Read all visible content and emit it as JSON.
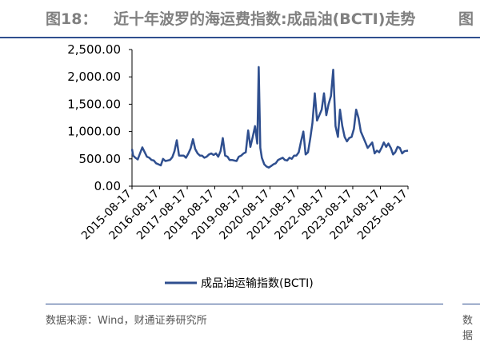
{
  "header": {
    "figure_number": "图18：",
    "figure_title": "近十年波罗的海运费指数:成品油(BCTI)走势",
    "next_figure_fragment": "图"
  },
  "footer": {
    "source": "数据来源：Wind，财通证券研究所",
    "next_source_fragment": "数据"
  },
  "colors": {
    "series": "#2f4f8f",
    "axis": "#000000",
    "title_text": "#808080"
  },
  "chart_data": {
    "type": "line",
    "title": "",
    "xlabel": "",
    "ylabel": "",
    "ylim": [
      0,
      2500
    ],
    "yticks": [
      0,
      500,
      1000,
      1500,
      2000,
      2500
    ],
    "ytick_labels": [
      "0.00",
      "500.00",
      "1,000.00",
      "1,500.00",
      "2,000.00",
      "2,500.00"
    ],
    "xlim": [
      "2015-08-17",
      "2025-08-17"
    ],
    "xtick_labels": [
      "2015-08-17",
      "2016-08-17",
      "2017-08-17",
      "2018-08-17",
      "2019-08-17",
      "2020-08-17",
      "2021-08-17",
      "2022-08-17",
      "2023-08-17",
      "2024-08-17",
      "2025-08-17"
    ],
    "grid": false,
    "legend_position": "bottom",
    "series": [
      {
        "name": "成品油运输指数(BCTI)",
        "x": [
          "2015-08-17",
          "2015-09-01",
          "2015-10-01",
          "2015-11-01",
          "2015-12-01",
          "2016-01-01",
          "2016-02-01",
          "2016-03-01",
          "2016-04-01",
          "2016-05-01",
          "2016-06-01",
          "2016-07-01",
          "2016-08-01",
          "2016-09-01",
          "2016-10-01",
          "2016-11-01",
          "2016-12-01",
          "2017-01-01",
          "2017-02-01",
          "2017-03-01",
          "2017-04-01",
          "2017-05-01",
          "2017-06-01",
          "2017-07-01",
          "2017-08-01",
          "2017-09-01",
          "2017-10-01",
          "2017-11-01",
          "2017-12-01",
          "2018-01-01",
          "2018-02-01",
          "2018-03-01",
          "2018-04-01",
          "2018-05-01",
          "2018-06-01",
          "2018-07-01",
          "2018-08-01",
          "2018-09-01",
          "2018-10-01",
          "2018-11-01",
          "2018-12-01",
          "2019-01-01",
          "2019-02-01",
          "2019-03-01",
          "2019-04-01",
          "2019-05-01",
          "2019-06-01",
          "2019-07-01",
          "2019-08-01",
          "2019-09-01",
          "2019-10-01",
          "2019-11-01",
          "2019-12-01",
          "2020-01-01",
          "2020-02-01",
          "2020-03-01",
          "2020-03-20",
          "2020-04-10",
          "2020-05-01",
          "2020-06-01",
          "2020-07-01",
          "2020-08-01",
          "2020-09-01",
          "2020-10-01",
          "2020-11-01",
          "2020-12-01",
          "2021-01-01",
          "2021-02-01",
          "2021-03-01",
          "2021-04-01",
          "2021-05-01",
          "2021-06-01",
          "2021-07-01",
          "2021-08-01",
          "2021-09-01",
          "2021-10-01",
          "2021-11-01",
          "2021-12-01",
          "2022-01-01",
          "2022-02-01",
          "2022-03-01",
          "2022-04-01",
          "2022-05-01",
          "2022-06-01",
          "2022-07-01",
          "2022-08-01",
          "2022-09-01",
          "2022-10-01",
          "2022-11-01",
          "2022-12-01",
          "2023-01-01",
          "2023-02-01",
          "2023-03-01",
          "2023-04-01",
          "2023-05-01",
          "2023-06-01",
          "2023-07-01",
          "2023-08-01",
          "2023-09-01",
          "2023-10-01",
          "2023-11-01",
          "2023-12-01",
          "2024-01-01",
          "2024-02-01",
          "2024-03-01",
          "2024-04-01",
          "2024-05-01",
          "2024-06-01",
          "2024-07-01",
          "2024-08-01",
          "2024-09-01",
          "2024-10-01",
          "2024-11-01",
          "2024-12-01",
          "2025-01-01",
          "2025-02-01",
          "2025-03-01",
          "2025-04-01",
          "2025-05-01",
          "2025-06-01",
          "2025-07-01",
          "2025-08-17"
        ],
        "values": [
          680,
          560,
          520,
          490,
          600,
          710,
          620,
          540,
          520,
          480,
          470,
          420,
          400,
          380,
          500,
          460,
          470,
          480,
          530,
          640,
          840,
          560,
          560,
          560,
          520,
          600,
          690,
          860,
          680,
          600,
          560,
          560,
          520,
          540,
          580,
          600,
          570,
          600,
          540,
          640,
          880,
          560,
          540,
          480,
          480,
          470,
          460,
          540,
          560,
          600,
          620,
          1020,
          720,
          900,
          1100,
          780,
          2180,
          700,
          520,
          400,
          360,
          340,
          370,
          400,
          420,
          480,
          500,
          520,
          480,
          470,
          520,
          500,
          560,
          560,
          620,
          820,
          1000,
          580,
          620,
          880,
          1150,
          1700,
          1200,
          1300,
          1400,
          1700,
          1300,
          1500,
          1650,
          2130,
          1100,
          900,
          1400,
          1100,
          900,
          820,
          880,
          900,
          1050,
          1400,
          1250,
          1000,
          900,
          800,
          700,
          750,
          800,
          600,
          650,
          620,
          700,
          800,
          720,
          780,
          700,
          580,
          620,
          720,
          700,
          600,
          640,
          650
        ]
      }
    ]
  }
}
